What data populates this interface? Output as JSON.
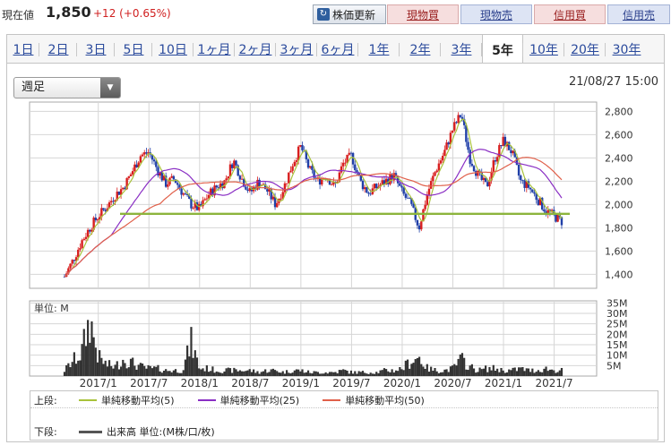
{
  "header": {
    "price_label": "現在値",
    "price_value": "1,850",
    "price_change": "+12 (+0.65%)",
    "refresh_button": "株価更新",
    "buy_button": "現物買",
    "sell_button": "現物売",
    "margin_buy_button": "信用買",
    "margin_sell_button": "信用売"
  },
  "tabs": [
    "1日",
    "2日",
    "3日",
    "5日",
    "10日",
    "1ヶ月",
    "2ヶ月",
    "3ヶ月",
    "6ヶ月",
    "1年",
    "2年",
    "3年",
    "5年",
    "10年",
    "20年",
    "30年"
  ],
  "active_tab": "5年",
  "dropdown_value": "週足",
  "timestamp": "21/08/27 15:00",
  "colors": {
    "up": "#d81e1e",
    "down": "#2140a8",
    "ma5": "#a8c23a",
    "ma25": "#8a2fc4",
    "ma50": "#e0604a",
    "volume": "#333333",
    "support": "#8cb43c"
  },
  "chart_data": {
    "type": "candlestick",
    "x_tick_labels": [
      "2017/1",
      "2017/7",
      "2018/1",
      "2018/7",
      "2019/1",
      "2019/7",
      "2020/1",
      "2020/7",
      "2021/1",
      "2021/7"
    ],
    "price_axis": {
      "ticks": [
        1400,
        1600,
        1800,
        2000,
        2200,
        2400,
        2600,
        2800
      ],
      "ylim": [
        1280,
        2880
      ]
    },
    "volume_axis": {
      "unit_label": "単位: M",
      "ticks": [
        "5M",
        "10M",
        "15M",
        "20M",
        "25M",
        "30M",
        "35M"
      ],
      "ylim": [
        0,
        36
      ]
    },
    "horizontal_line": {
      "value": 1920
    },
    "price_path": [
      [
        "2016/09",
        1380
      ],
      [
        "2016/10",
        1520
      ],
      [
        "2016/11",
        1680
      ],
      [
        "2016/12",
        1800
      ],
      [
        "2017/01",
        1900
      ],
      [
        "2017/02",
        1980
      ],
      [
        "2017/03",
        2080
      ],
      [
        "2017/04",
        2150
      ],
      [
        "2017/05",
        2280
      ],
      [
        "2017/06",
        2420
      ],
      [
        "2017/07",
        2450
      ],
      [
        "2017/08",
        2300
      ],
      [
        "2017/09",
        2180
      ],
      [
        "2017/10",
        2220
      ],
      [
        "2017/11",
        2100
      ],
      [
        "2017/12",
        2000
      ],
      [
        "2018/01",
        1960
      ],
      [
        "2018/02",
        2080
      ],
      [
        "2018/03",
        2150
      ],
      [
        "2018/04",
        2200
      ],
      [
        "2018/05",
        2380
      ],
      [
        "2018/06",
        2220
      ],
      [
        "2018/07",
        2100
      ],
      [
        "2018/08",
        2200
      ],
      [
        "2018/09",
        2120
      ],
      [
        "2018/10",
        2000
      ],
      [
        "2018/11",
        2150
      ],
      [
        "2018/12",
        2350
      ],
      [
        "2019/01",
        2500
      ],
      [
        "2019/02",
        2300
      ],
      [
        "2019/03",
        2200
      ],
      [
        "2019/04",
        2250
      ],
      [
        "2019/05",
        2150
      ],
      [
        "2019/06",
        2350
      ],
      [
        "2019/07",
        2420
      ],
      [
        "2019/08",
        2200
      ],
      [
        "2019/09",
        2100
      ],
      [
        "2019/10",
        2150
      ],
      [
        "2019/11",
        2200
      ],
      [
        "2019/12",
        2250
      ],
      [
        "2020/01",
        2100
      ],
      [
        "2020/02",
        2000
      ],
      [
        "2020/03",
        1800
      ],
      [
        "2020/04",
        2100
      ],
      [
        "2020/05",
        2300
      ],
      [
        "2020/06",
        2450
      ],
      [
        "2020/07",
        2650
      ],
      [
        "2020/08",
        2780
      ],
      [
        "2020/09",
        2400
      ],
      [
        "2020/10",
        2250
      ],
      [
        "2020/11",
        2150
      ],
      [
        "2020/12",
        2400
      ],
      [
        "2021/01",
        2550
      ],
      [
        "2021/02",
        2450
      ],
      [
        "2021/03",
        2200
      ],
      [
        "2021/04",
        2150
      ],
      [
        "2021/05",
        2050
      ],
      [
        "2021/06",
        1950
      ],
      [
        "2021/07",
        1900
      ],
      [
        "2021/08",
        1850
      ]
    ],
    "volume_path": [
      [
        "2016/09",
        3
      ],
      [
        "2016/10",
        8
      ],
      [
        "2016/11",
        12
      ],
      [
        "2016/12",
        30
      ],
      [
        "2017/01",
        10
      ],
      [
        "2017/02",
        6
      ],
      [
        "2017/03",
        5
      ],
      [
        "2017/04",
        9
      ],
      [
        "2017/05",
        7
      ],
      [
        "2017/06",
        5
      ],
      [
        "2017/07",
        4
      ],
      [
        "2017/08",
        4
      ],
      [
        "2017/09",
        3
      ],
      [
        "2017/10",
        3
      ],
      [
        "2017/11",
        3
      ],
      [
        "2017/12",
        18
      ],
      [
        "2018/01",
        4
      ],
      [
        "2018/02",
        4
      ],
      [
        "2018/03",
        3
      ],
      [
        "2018/04",
        3
      ],
      [
        "2018/05",
        3
      ],
      [
        "2018/06",
        3
      ],
      [
        "2018/07",
        3
      ],
      [
        "2018/08",
        2
      ],
      [
        "2018/09",
        3
      ],
      [
        "2018/10",
        3
      ],
      [
        "2018/11",
        2
      ],
      [
        "2018/12",
        3
      ],
      [
        "2019/01",
        3
      ],
      [
        "2019/02",
        2
      ],
      [
        "2019/03",
        2
      ],
      [
        "2019/04",
        2
      ],
      [
        "2019/05",
        2
      ],
      [
        "2019/06",
        3
      ],
      [
        "2019/07",
        2
      ],
      [
        "2019/08",
        2
      ],
      [
        "2019/09",
        2
      ],
      [
        "2019/10",
        2
      ],
      [
        "2019/11",
        3
      ],
      [
        "2019/12",
        3
      ],
      [
        "2020/01",
        4
      ],
      [
        "2020/02",
        8
      ],
      [
        "2020/03",
        10
      ],
      [
        "2020/04",
        4
      ],
      [
        "2020/05",
        3
      ],
      [
        "2020/06",
        3
      ],
      [
        "2020/07",
        4
      ],
      [
        "2020/08",
        9
      ],
      [
        "2020/09",
        5
      ],
      [
        "2020/10",
        3
      ],
      [
        "2020/11",
        4
      ],
      [
        "2020/12",
        4
      ],
      [
        "2021/01",
        3
      ],
      [
        "2021/02",
        3
      ],
      [
        "2021/03",
        4
      ],
      [
        "2021/04",
        3
      ],
      [
        "2021/05",
        3
      ],
      [
        "2021/06",
        4
      ],
      [
        "2021/07",
        3
      ],
      [
        "2021/08",
        3
      ]
    ],
    "legend": {
      "upper_label": "上段:",
      "lower_label": "下段:",
      "items": [
        {
          "name": "単純移動平均(5)",
          "period": 5
        },
        {
          "name": "単純移動平均(25)",
          "period": 25
        },
        {
          "name": "単純移動平均(50)",
          "period": 50
        }
      ],
      "volume_item": "出来高 単位:(M株/口/枚)"
    }
  }
}
